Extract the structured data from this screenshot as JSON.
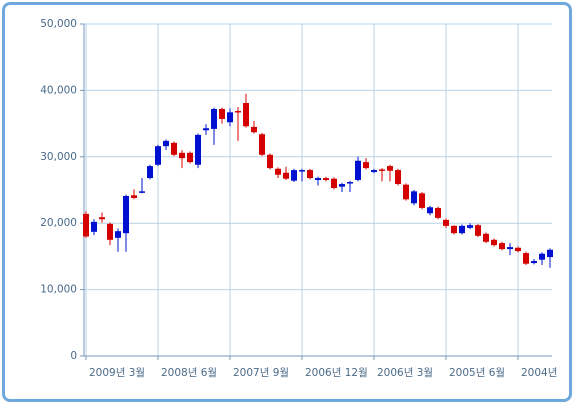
{
  "chart_data": {
    "type": "candlestick",
    "categories": [
      "2009년 3월",
      null,
      null,
      null,
      null,
      null,
      null,
      null,
      null,
      "2008년 6월",
      null,
      null,
      null,
      null,
      null,
      null,
      null,
      null,
      "2007년 9월",
      null,
      null,
      null,
      null,
      null,
      null,
      null,
      null,
      "2006년 12월",
      null,
      null,
      null,
      null,
      null,
      null,
      null,
      null,
      "2006년 3월",
      null,
      null,
      null,
      null,
      null,
      null,
      null,
      null,
      "2005년 6월",
      null,
      null,
      null,
      null,
      null,
      null,
      null,
      null,
      "2004년",
      null,
      null,
      null,
      null
    ],
    "open": [
      18000,
      20200,
      20600,
      17500,
      18800,
      24100,
      23800,
      24800,
      28600,
      31600,
      32400,
      30300,
      29800,
      29200,
      33300,
      34300,
      37200,
      35700,
      36700,
      36700,
      34600,
      33700,
      30300,
      28300,
      27300,
      26700,
      28000,
      28000,
      26800,
      26800,
      26500,
      25300,
      25900,
      26200,
      29400,
      28300,
      28000,
      27900,
      27900,
      25900,
      23600,
      24800,
      22300,
      22400,
      20800,
      19600,
      18500,
      19600,
      19700,
      18100,
      17200,
      16700,
      16100,
      16400,
      15800,
      13900,
      14300,
      15400,
      16000
    ],
    "high": [
      21800,
      20600,
      21600,
      20100,
      19200,
      24300,
      25100,
      26800,
      28800,
      31800,
      32600,
      32300,
      31000,
      30800,
      33500,
      34900,
      37400,
      37400,
      37300,
      37500,
      39500,
      35400,
      33600,
      30500,
      28400,
      28500,
      28200,
      28200,
      28200,
      27000,
      27000,
      26900,
      26100,
      26400,
      30000,
      29800,
      28200,
      28300,
      28800,
      28200,
      26000,
      25000,
      24700,
      22600,
      22500,
      20700,
      19700,
      19800,
      20000,
      19900,
      18600,
      17700,
      17200,
      17000,
      16500,
      15700,
      14600,
      15600,
      16200
    ],
    "low": [
      17800,
      18200,
      20100,
      16700,
      15700,
      15700,
      23600,
      24500,
      26600,
      28600,
      31000,
      30100,
      28300,
      29000,
      28300,
      33300,
      31800,
      35000,
      34600,
      32400,
      34400,
      33500,
      30100,
      28100,
      26800,
      26500,
      26200,
      26300,
      26600,
      25700,
      26300,
      25100,
      24700,
      24700,
      26300,
      28100,
      27500,
      26300,
      26300,
      25700,
      23400,
      22700,
      22100,
      21200,
      20600,
      19300,
      18300,
      18300,
      19100,
      17900,
      17000,
      16500,
      15900,
      15200,
      15600,
      13700,
      13800,
      13700,
      13300
    ],
    "close": [
      21400,
      18700,
      20900,
      19900,
      17800,
      18500,
      24200,
      24700,
      26800,
      28800,
      31600,
      32100,
      30600,
      30600,
      28800,
      34000,
      34200,
      37200,
      35200,
      36900,
      38100,
      34500,
      33400,
      30300,
      28200,
      27600,
      26400,
      27800,
      28000,
      26500,
      26800,
      26700,
      25500,
      26000,
      26500,
      29200,
      27700,
      28100,
      28600,
      28000,
      25800,
      23000,
      24500,
      21500,
      22300,
      20500,
      19600,
      18500,
      19300,
      19700,
      18400,
      17500,
      17000,
      16100,
      16300,
      15500,
      14000,
      14500,
      14900
    ],
    "up_color": "#d40000",
    "down_color": "#0010d0",
    "ylim": [
      0,
      50000
    ],
    "yticks": [
      0,
      {
        "value": 10000,
        "label": "10,000"
      },
      {
        "value": 20000,
        "label": "20,000"
      },
      {
        "value": 30000,
        "label": "30,000"
      },
      {
        "value": 40000,
        "label": "40,000"
      },
      {
        "value": 50000,
        "label": "50,000"
      }
    ],
    "grid": true
  }
}
